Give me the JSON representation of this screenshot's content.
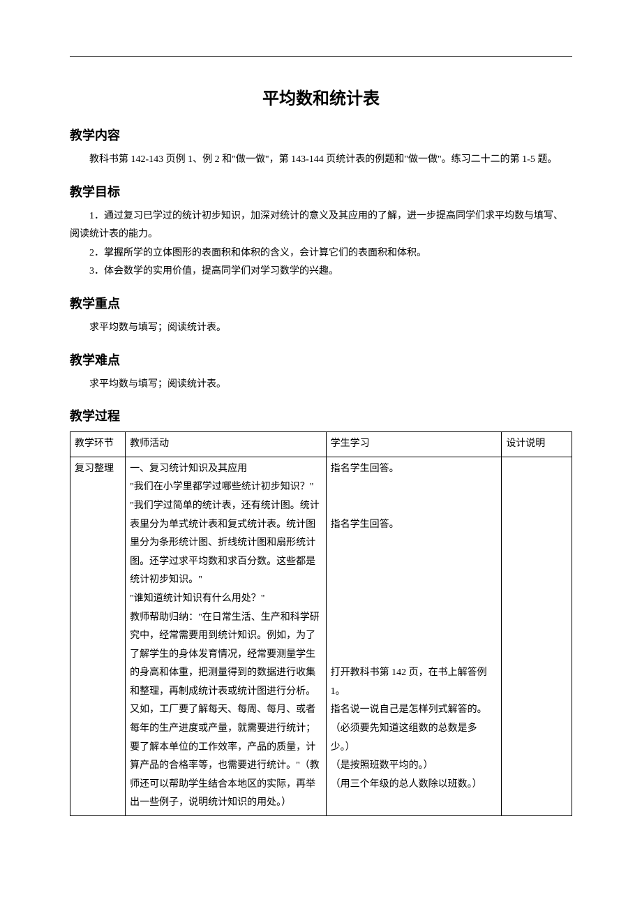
{
  "title": "平均数和统计表",
  "sections": {
    "content": {
      "heading": "教学内容",
      "para": "教科书第 142-143 页例 1、例 2 和\"做一做\"，第 143-144 页统计表的例题和\"做一做\"。练习二十二的第 1-5 题。"
    },
    "goals": {
      "heading": "教学目标",
      "items": [
        "1．通过复习已学过的统计初步知识，加深对统计的意义及其应用的了解，进一步提高同学们求平均数与填写、阅读统计表的能力。",
        "2．掌握所学的立体图形的表面积和体积的含义，会计算它们的表面积和体积。",
        "3．体会数学的实用价值，提高同学们对学习数学的兴趣。"
      ]
    },
    "key": {
      "heading": "教学重点",
      "para": "求平均数与填写；阅读统计表。"
    },
    "difficulty": {
      "heading": "教学难点",
      "para": "求平均数与填写；阅读统计表。"
    },
    "process": {
      "heading": "教学过程"
    }
  },
  "table": {
    "headers": {
      "phase": "教学环节",
      "teacher": "教师活动",
      "student": "学生学习",
      "note": "设计说明"
    },
    "row": {
      "phase": "复习整理",
      "teacher": "一、复习统计知识及其应用\n\"我们在小学里都学过哪些统计初步知识？\"\n\"我们学过简单的统计表，还有统计图。统计表里分为单式统计表和复式统计表。统计图里分为条形统计图、折线统计图和扇形统计图。还学过求平均数和求百分数。这些都是统计初步知识。\"\n\"谁知道统计知识有什么用处？\"\n教师帮助归纳：\"在日常生活、生产和科学研究中，经常需要用到统计知识。例如，为了了解学生的身体发育情况，经常要测量学生的身高和体重，把测量得到的数据进行收集和整理，再制成统计表或统计图进行分析。又如，工厂要了解每天、每周、每月、或者每年的生产进度或产量，就需要进行统计；要了解本单位的工作效率，产品的质量，计算产品的合格率等，也需要进行统计。\"（教师还可以帮助学生结合本地区的实际，再举出一些例子，说明统计知识的用处。）",
      "student": "指名学生回答。\n\n\n指名学生回答。\n\n\n\n\n\n\n\n打开教科书第 142 页，在书上解答例 1。\n指名说一说自己是怎样列式解答的。\n（必须要先知道这组数的总数是多少。）\n（是按照班数平均的。）\n（用三个年级的总人数除以班数。）",
      "note": ""
    }
  }
}
